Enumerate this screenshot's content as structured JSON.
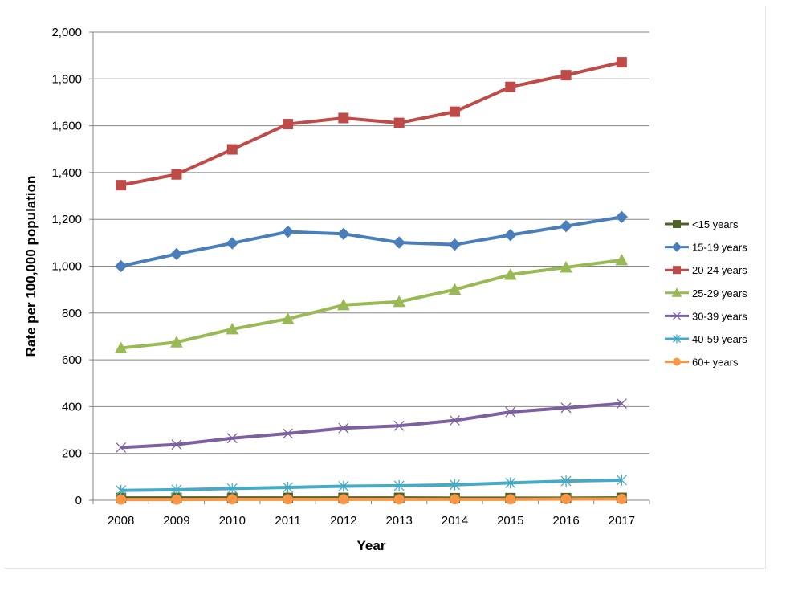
{
  "chart_data": {
    "type": "line",
    "title": "",
    "xlabel": "Year",
    "ylabel": "Rate per 100,000  population",
    "ylim": [
      0,
      2000
    ],
    "yticks": [
      0,
      200,
      400,
      600,
      800,
      1000,
      1200,
      1400,
      1600,
      1800,
      2000
    ],
    "ytick_labels": [
      "0",
      "200",
      "400",
      "600",
      "800",
      "1,000",
      "1,200",
      "1,400",
      "1,600",
      "1,800",
      "2,000"
    ],
    "categories": [
      "2008",
      "2009",
      "2010",
      "2011",
      "2012",
      "2013",
      "2014",
      "2015",
      "2016",
      "2017"
    ],
    "grid": "horizontal",
    "legend_position": "right",
    "series": [
      {
        "name": "<15 years",
        "color": "#4f6228",
        "marker": "square",
        "values": [
          10,
          10,
          10,
          10,
          10,
          10,
          9,
          9,
          9,
          10
        ]
      },
      {
        "name": "15-19 years",
        "color": "#4a7ebb",
        "marker": "diamond",
        "values": [
          1000,
          1052,
          1098,
          1147,
          1138,
          1101,
          1092,
          1133,
          1171,
          1210
        ]
      },
      {
        "name": "20-24 years",
        "color": "#be4b48",
        "marker": "square",
        "values": [
          1346,
          1392,
          1499,
          1607,
          1633,
          1612,
          1660,
          1766,
          1816,
          1871
        ]
      },
      {
        "name": "25-29 years",
        "color": "#98b954",
        "marker": "triangle",
        "values": [
          650,
          675,
          731,
          775,
          834,
          848,
          900,
          964,
          995,
          1026
        ]
      },
      {
        "name": "30-39 years",
        "color": "#7d60a0",
        "marker": "x",
        "values": [
          225,
          238,
          265,
          285,
          308,
          318,
          341,
          377,
          395,
          413
        ]
      },
      {
        "name": "40-59 years",
        "color": "#46aac5",
        "marker": "star",
        "values": [
          42,
          45,
          50,
          55,
          60,
          62,
          66,
          74,
          82,
          86
        ]
      },
      {
        "name": "60+ years",
        "color": "#f79646",
        "marker": "circle",
        "values": [
          3,
          3,
          4,
          4,
          4,
          4,
          4,
          4,
          5,
          5
        ]
      }
    ]
  }
}
